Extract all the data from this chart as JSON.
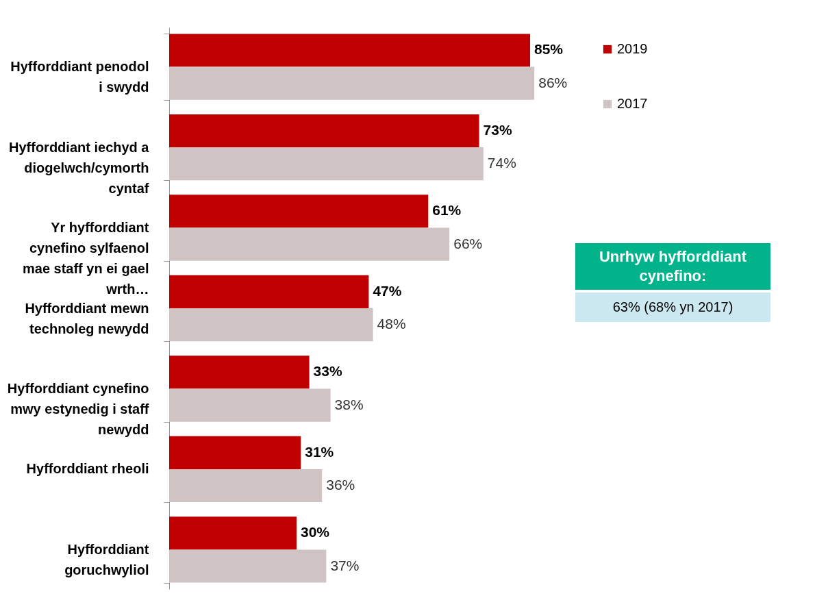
{
  "chart_data": {
    "type": "bar",
    "orientation": "horizontal",
    "categories": [
      "Hyfforddiant penodol i swydd",
      "Hyfforddiant iechyd a diogelwch/cymorth cyntaf",
      "Yr hyfforddiant cynefino sylfaenol mae staff yn ei gael wrth…",
      "Hyfforddiant mewn technoleg newydd",
      "Hyfforddiant cynefino mwy estynedig i staff newydd",
      "Hyfforddiant rheoli",
      "Hyfforddiant goruchwyliol"
    ],
    "series": [
      {
        "name": "2019",
        "color": "#c00000",
        "values": [
          85,
          73,
          61,
          47,
          33,
          31,
          30
        ],
        "value_labels": [
          "85%",
          "73%",
          "61%",
          "47%",
          "33%",
          "31%",
          "30%"
        ]
      },
      {
        "name": "2017",
        "color": "#cfc3c3",
        "values": [
          86,
          74,
          66,
          48,
          38,
          36,
          37
        ],
        "value_labels": [
          "86%",
          "74%",
          "66%",
          "48%",
          "38%",
          "36%",
          "37%"
        ]
      }
    ],
    "legend": "top right",
    "annotations": [
      "Unrhyw hyfforddiant cynefino:",
      "63% (68% yn 2017)"
    ]
  }
}
